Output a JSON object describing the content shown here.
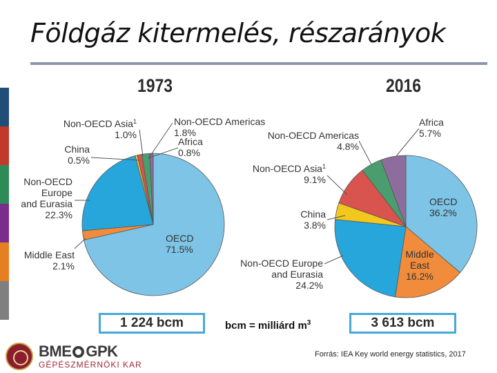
{
  "slide": {
    "title": "Földgáz kitermelés, részarányok",
    "unit_note": "bcm = milliárd m",
    "unit_note_sup": "3",
    "source": "Forrás: IEA Key world energy statistics, 2017",
    "logo": {
      "main_left": "BME",
      "main_right": "GPK",
      "subtitle": "GÉPÉSZMÉRNÖKI KAR"
    },
    "sidebar_colors": [
      "#1f4e79",
      "#c0392b",
      "#2e8b57",
      "#7b2d8e",
      "#e67e22",
      "#7f7f7f"
    ]
  },
  "chart_data": [
    {
      "type": "pie",
      "title": "1973",
      "total_label": "1 224 bcm",
      "slices": [
        {
          "name": "OECD",
          "label": "OECD",
          "value": "71.5%",
          "pct": 71.5,
          "color": "#7ec4e6"
        },
        {
          "name": "Middle East",
          "label": "Middle East",
          "value": "2.1%",
          "pct": 2.1,
          "color": "#f08c3c"
        },
        {
          "name": "Non-OECD Europe and Eurasia",
          "label": "Non-OECD Europe and Eurasia",
          "value": "22.3%",
          "pct": 22.3,
          "color": "#27a6dc"
        },
        {
          "name": "China",
          "label": "China",
          "value": "0.5%",
          "pct": 0.5,
          "color": "#f2c81e"
        },
        {
          "name": "Non-OECD Asia",
          "label": "Non-OECD Asia",
          "sup": "1",
          "value": "1.0%",
          "pct": 1.0,
          "color": "#d9534f"
        },
        {
          "name": "Non-OECD Americas",
          "label": "Non-OECD Americas",
          "value": "1.8%",
          "pct": 1.8,
          "color": "#4a9e6e"
        },
        {
          "name": "Africa",
          "label": "Africa",
          "value": "0.8%",
          "pct": 0.8,
          "color": "#8c6d9e"
        }
      ]
    },
    {
      "type": "pie",
      "title": "2016",
      "total_label": "3 613 bcm",
      "slices": [
        {
          "name": "OECD",
          "label": "OECD",
          "value": "36.2%",
          "pct": 36.2,
          "color": "#7ec4e6"
        },
        {
          "name": "Middle East",
          "label": "Middle East",
          "value": "16.2%",
          "pct": 16.2,
          "color": "#f08c3c"
        },
        {
          "name": "Non-OECD Europe and Eurasia",
          "label": "Non-OECD Europe and Eurasia",
          "value": "24.2%",
          "pct": 24.2,
          "color": "#27a6dc"
        },
        {
          "name": "China",
          "label": "China",
          "value": "3.8%",
          "pct": 3.8,
          "color": "#f2c81e"
        },
        {
          "name": "Non-OECD Asia",
          "label": "Non-OECD Asia",
          "sup": "1",
          "value": "9.1%",
          "pct": 9.1,
          "color": "#d9534f"
        },
        {
          "name": "Non-OECD Americas",
          "label": "Non-OECD Americas",
          "value": "4.8%",
          "pct": 4.8,
          "color": "#4a9e6e"
        },
        {
          "name": "Africa",
          "label": "Africa",
          "value": "5.7%",
          "pct": 5.7,
          "color": "#8c6d9e"
        }
      ]
    }
  ]
}
